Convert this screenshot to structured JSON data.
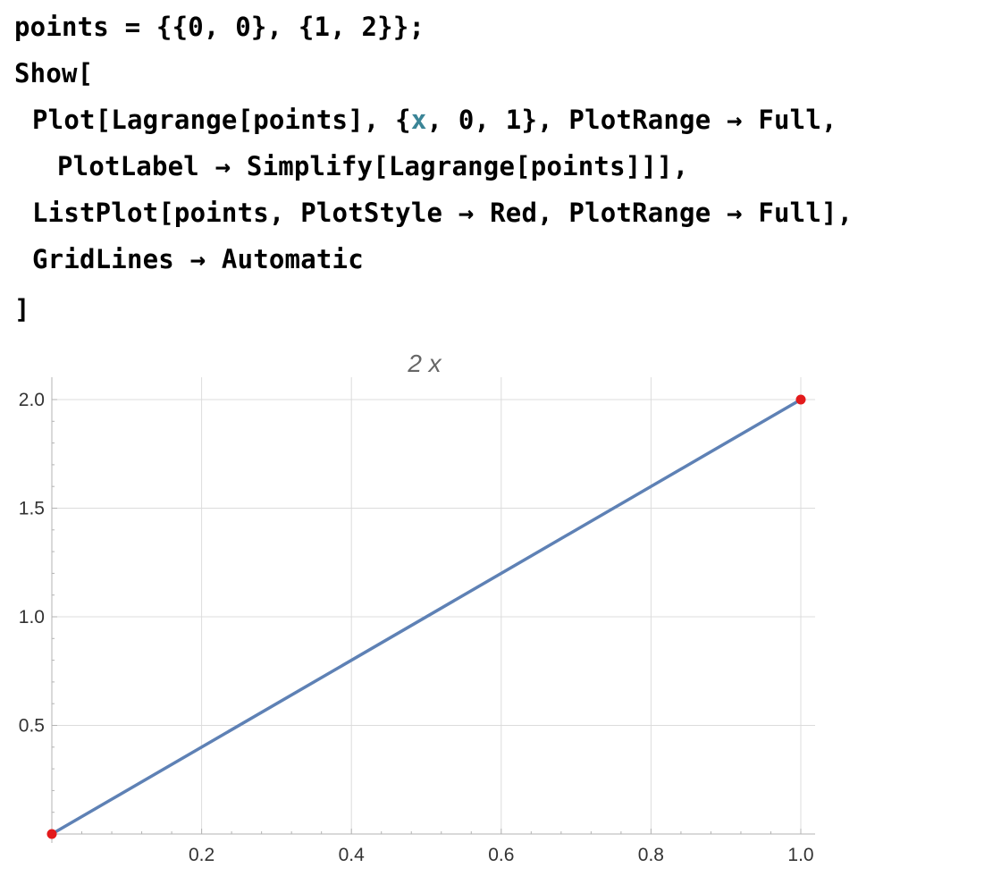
{
  "notebook": {
    "input_lines": [
      {
        "pre": "points = {{0, 0}, {1, 2}};",
        "var": "",
        "post": ""
      },
      {
        "pre": "Show[",
        "var": "",
        "post": ""
      },
      {
        "pre": "Plot[Lagrange[points], {",
        "var": "x",
        "post": ", 0, 1}, PlotRange → Full,"
      },
      {
        "pre": "PlotLabel → Simplify[Lagrange[points]]],",
        "var": "",
        "post": ""
      },
      {
        "pre": "ListPlot[points, PlotStyle → Red, PlotRange → Full],",
        "var": "",
        "post": ""
      },
      {
        "pre": "GridLines → Automatic",
        "var": "",
        "post": ""
      },
      {
        "pre": "]",
        "var": "",
        "post": ""
      }
    ]
  },
  "chart_data": {
    "type": "line",
    "title": "2 x",
    "xlabel": "",
    "ylabel": "",
    "xlim": [
      0,
      1
    ],
    "ylim": [
      0,
      2
    ],
    "grid": true,
    "x_ticks": [
      0.2,
      0.4,
      0.6,
      0.8,
      1.0
    ],
    "x_tick_labels": [
      "0.2",
      "0.4",
      "0.6",
      "0.8",
      "1.0"
    ],
    "y_ticks": [
      0.5,
      1.0,
      1.5,
      2.0
    ],
    "y_tick_labels": [
      "0.5",
      "1.0",
      "1.5",
      "2.0"
    ],
    "series": [
      {
        "type": "line",
        "x": [
          0,
          1
        ],
        "y": [
          0,
          2
        ],
        "color": "#5e81b5"
      },
      {
        "type": "scatter",
        "x": [
          0,
          1
        ],
        "y": [
          0,
          2
        ],
        "color": "#e31a1c"
      }
    ]
  }
}
